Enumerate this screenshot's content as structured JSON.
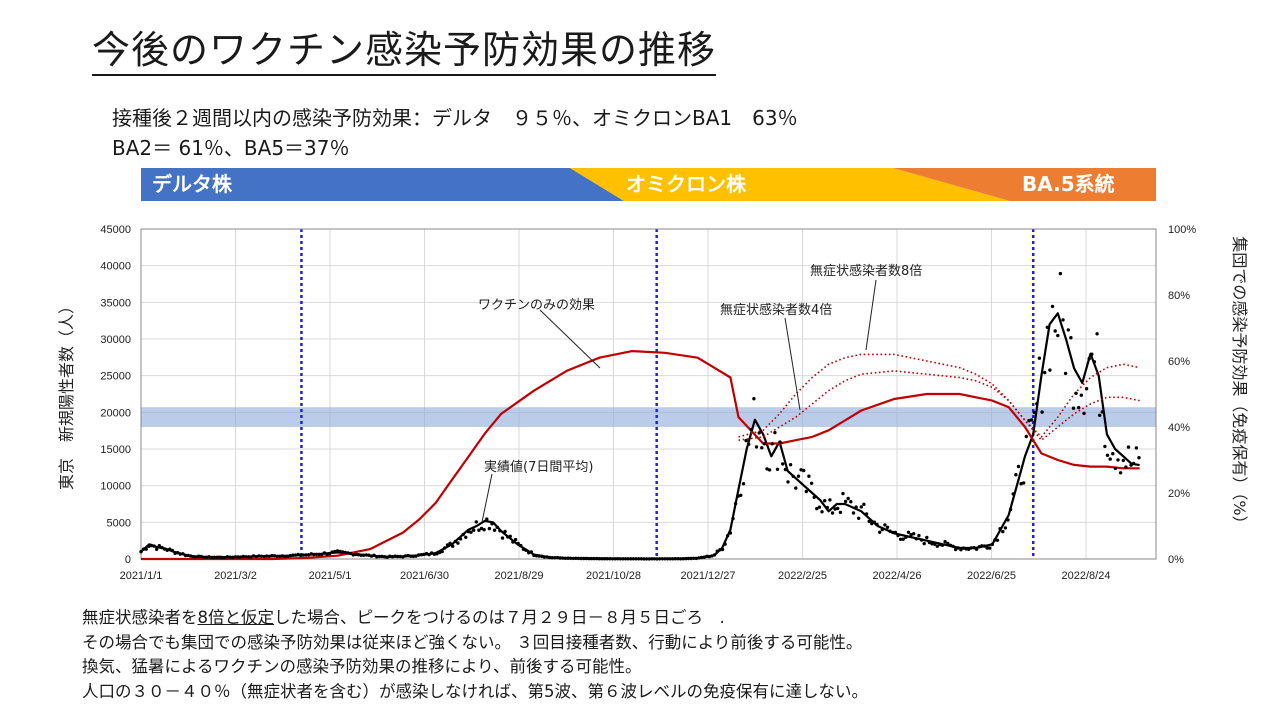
{
  "title": "今後のワクチン感染予防効果の推移",
  "subtitle_line1": "接種後２週間以内の感染予防効果：デルタ　９５％、オミクロンBA1　63％",
  "subtitle_line2": "BA2＝ 61％、BA5＝37％",
  "variant_band": {
    "segments": [
      {
        "label": "デルタ株",
        "color": "#4472c4"
      },
      {
        "label": "オミクロン株",
        "color": "#ffc000"
      },
      {
        "label": "BA.5系統",
        "color": "#ed7d31"
      }
    ]
  },
  "notes": {
    "line1_a": "無症状感染者を",
    "line1_b": "8倍と仮定",
    "line1_c": "した場合、ピークをつけるのは７月２９日－８月５日ごろ　.",
    "line2": "その場合でも集団での感染予防効果は従来ほど強くない。 ３回目接種者数、行動により前後する可能性。",
    "line3": "換気、猛暑によるワクチンの感染予防効果の推移により、前後する可能性。",
    "line4": "人口の３０－４０％（無症状者を含む）が感染しなければ、第5波、第６波レベルの免疫保有に達しない。"
  },
  "chart_data": {
    "type": "line",
    "ylabel": "東京　新規陽性者数（人）",
    "y2label": "集団での感染予防効果（免疫保有）（%）",
    "ylim": [
      0,
      45000
    ],
    "y2lim": [
      0,
      100
    ],
    "yticks": [
      "0",
      "5000",
      "10000",
      "15000",
      "20000",
      "25000",
      "30000",
      "35000",
      "40000",
      "45000"
    ],
    "y2ticks": [
      "0%",
      "20%",
      "40%",
      "60%",
      "80%",
      "100%"
    ],
    "xticks": [
      "2021/1/1",
      "2021/3/2",
      "2021/5/1",
      "2021/6/30",
      "2021/8/29",
      "2021/10/28",
      "2021/12/27",
      "2022/2/25",
      "2022/4/26",
      "2022/6/25",
      "2022/8/24"
    ],
    "xlim_days": [
      0,
      620
    ],
    "grid": true,
    "shaded_band_y2": [
      40,
      46
    ],
    "vertical_markers_days": [
      98,
      315,
      545
    ],
    "annotations": {
      "vaccine_only": "ワクチンのみの効果",
      "actual": "実績値(7日間平均)",
      "x4": "無症状感染者数4倍",
      "x8": "無症状感染者数8倍"
    },
    "series": [
      {
        "name": "実績値(7日間平均)",
        "axis": "left",
        "color": "#000000",
        "x": [
          0,
          5,
          10,
          15,
          20,
          30,
          40,
          50,
          60,
          70,
          80,
          90,
          100,
          110,
          120,
          130,
          140,
          150,
          160,
          170,
          180,
          190,
          200,
          205,
          210,
          215,
          220,
          230,
          240,
          250,
          260,
          270,
          280,
          290,
          300,
          310,
          320,
          330,
          340,
          350,
          355,
          360,
          365,
          370,
          375,
          380,
          385,
          390,
          395,
          400,
          405,
          410,
          415,
          420,
          425,
          430,
          440,
          450,
          460,
          470,
          480,
          490,
          500,
          510,
          520,
          530,
          540,
          545,
          550,
          555,
          560,
          565,
          570,
          575,
          580,
          585,
          590,
          595,
          600,
          605,
          610
        ],
        "values": [
          1000,
          2000,
          1600,
          1400,
          1000,
          400,
          250,
          220,
          300,
          350,
          400,
          450,
          550,
          700,
          900,
          700,
          450,
          300,
          350,
          500,
          800,
          2000,
          4000,
          4500,
          5200,
          5000,
          3800,
          2000,
          600,
          200,
          100,
          60,
          40,
          30,
          25,
          20,
          25,
          40,
          100,
          500,
          1500,
          4000,
          9500,
          15000,
          19000,
          17000,
          14000,
          16000,
          12000,
          11000,
          10000,
          9000,
          8000,
          6500,
          7500,
          7500,
          6500,
          4500,
          3500,
          3000,
          2500,
          2000,
          1500,
          1500,
          2000,
          6000,
          14000,
          17000,
          25000,
          32000,
          33500,
          30000,
          26000,
          24000,
          28000,
          25000,
          17000,
          15000,
          14000,
          13000,
          12800
        ]
      },
      {
        "name": "ワクチンのみの効果",
        "axis": "right",
        "color": "#c00000",
        "x": [
          0,
          50,
          80,
          100,
          120,
          140,
          160,
          170,
          180,
          190,
          200,
          210,
          220,
          240,
          260,
          280,
          300,
          320,
          340,
          350,
          360,
          365,
          380,
          390,
          400,
          410,
          420,
          430,
          440,
          460,
          480,
          500,
          510,
          520,
          530,
          540,
          550,
          560,
          570,
          580,
          590,
          600,
          610
        ],
        "values": [
          0,
          0,
          0,
          0.3,
          1,
          3,
          8,
          12,
          17,
          24,
          31,
          38,
          44,
          51,
          57,
          61,
          63,
          62.5,
          61,
          58,
          55,
          43,
          35,
          35,
          36,
          37,
          39,
          42,
          45,
          48.5,
          50,
          50,
          49,
          48,
          46,
          40,
          32,
          30,
          28.5,
          28,
          28,
          27.5,
          27.5
        ]
      },
      {
        "name": "無症状感染者数4倍",
        "axis": "right",
        "color": "#c00000",
        "dotted": true,
        "x": [
          365,
          380,
          390,
          400,
          410,
          420,
          430,
          440,
          460,
          480,
          500,
          510,
          520,
          530,
          540,
          550,
          560,
          570,
          580,
          590,
          600,
          610
        ],
        "values": [
          36,
          37,
          40,
          43,
          47,
          51,
          54,
          56,
          57,
          56,
          55,
          54,
          52,
          48,
          42,
          36,
          40,
          44,
          47,
          49,
          49,
          48
        ]
      },
      {
        "name": "無症状感染者数8倍",
        "axis": "right",
        "color": "#c00000",
        "dotted": true,
        "x": [
          365,
          380,
          390,
          400,
          410,
          420,
          430,
          440,
          460,
          480,
          500,
          510,
          520,
          530,
          540,
          550,
          560,
          570,
          580,
          590,
          600,
          610
        ],
        "values": [
          37,
          39,
          44,
          50,
          55,
          59,
          61,
          62,
          62,
          60,
          58,
          56,
          53,
          48,
          42,
          37,
          43,
          50,
          55,
          58,
          59,
          58
        ]
      }
    ]
  }
}
